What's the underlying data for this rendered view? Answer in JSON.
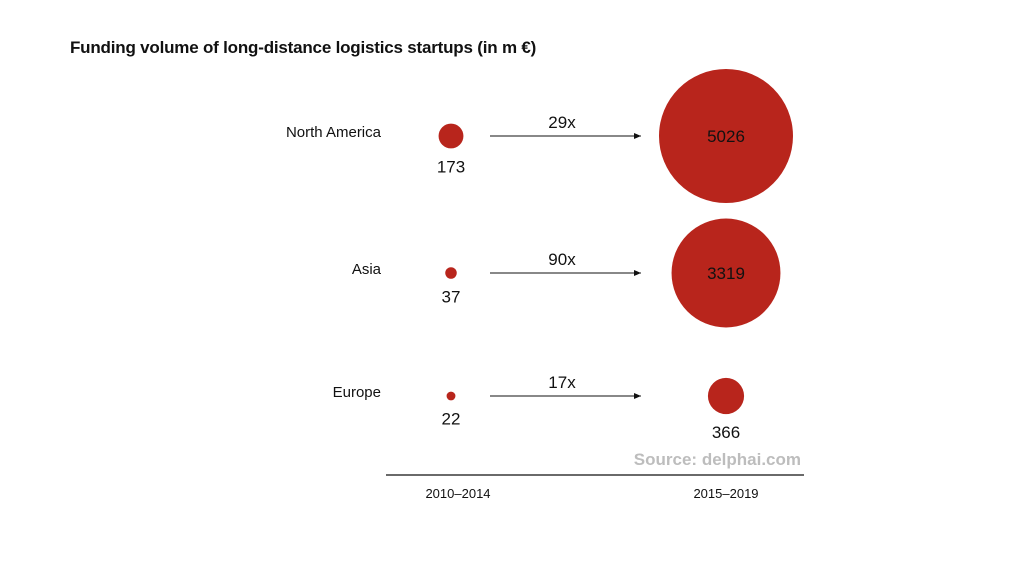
{
  "title": "Funding volume of long-distance logistics startups (in m €)",
  "source": "Source: delphai.com",
  "colors": {
    "bubble": "#b8251c",
    "text": "#111111",
    "source": "#bdbdbd"
  },
  "chart_data": {
    "type": "bubble",
    "title": "Funding volume of long-distance logistics startups (in m €)",
    "unit": "m €",
    "periods": [
      "2010–2014",
      "2015–2019"
    ],
    "regions": [
      {
        "name": "North America",
        "values": [
          173,
          5026
        ],
        "multiplier": "29x"
      },
      {
        "name": "Asia",
        "values": [
          37,
          3319
        ],
        "multiplier": "90x"
      },
      {
        "name": "Europe",
        "values": [
          22,
          366
        ],
        "multiplier": "17x"
      }
    ],
    "legend": "none",
    "grid": false
  }
}
